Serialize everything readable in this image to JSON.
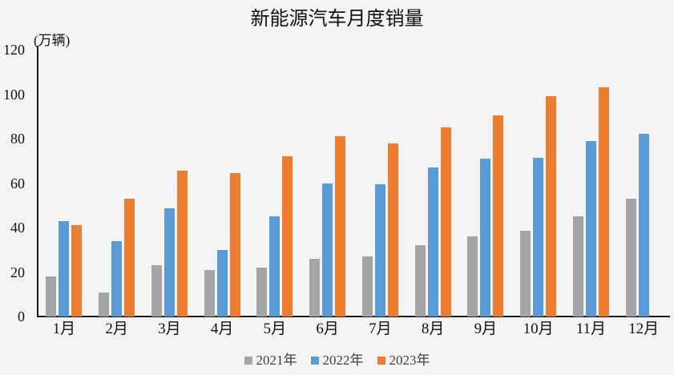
{
  "chart_data": {
    "type": "bar",
    "title": "新能源汽车月度销量",
    "unit_label": "(万辆)",
    "xlabel": "",
    "ylabel": "万辆",
    "categories": [
      "1月",
      "2月",
      "3月",
      "4月",
      "5月",
      "6月",
      "7月",
      "8月",
      "9月",
      "10月",
      "11月",
      "12月"
    ],
    "series": [
      {
        "name": "2021年",
        "color": "#A5A5A5",
        "values": [
          18,
          11,
          23,
          21,
          22,
          26,
          27,
          32,
          36,
          38.5,
          45,
          53
        ]
      },
      {
        "name": "2022年",
        "color": "#5B9BD5",
        "values": [
          43,
          34,
          48.5,
          30,
          45,
          60,
          59.5,
          67,
          71,
          71.5,
          79,
          82
        ]
      },
      {
        "name": "2023年",
        "color": "#ED7D31",
        "values": [
          41,
          53,
          65.5,
          64.5,
          72,
          81,
          78,
          85,
          90.5,
          99,
          103,
          null
        ]
      }
    ],
    "ylim": [
      0,
      120
    ],
    "yticks": [
      0,
      20,
      40,
      60,
      80,
      100,
      120
    ],
    "grid": false,
    "legend_position": "bottom",
    "background_color": "#f4f4f4",
    "axis_color": "#1a1a1a"
  }
}
